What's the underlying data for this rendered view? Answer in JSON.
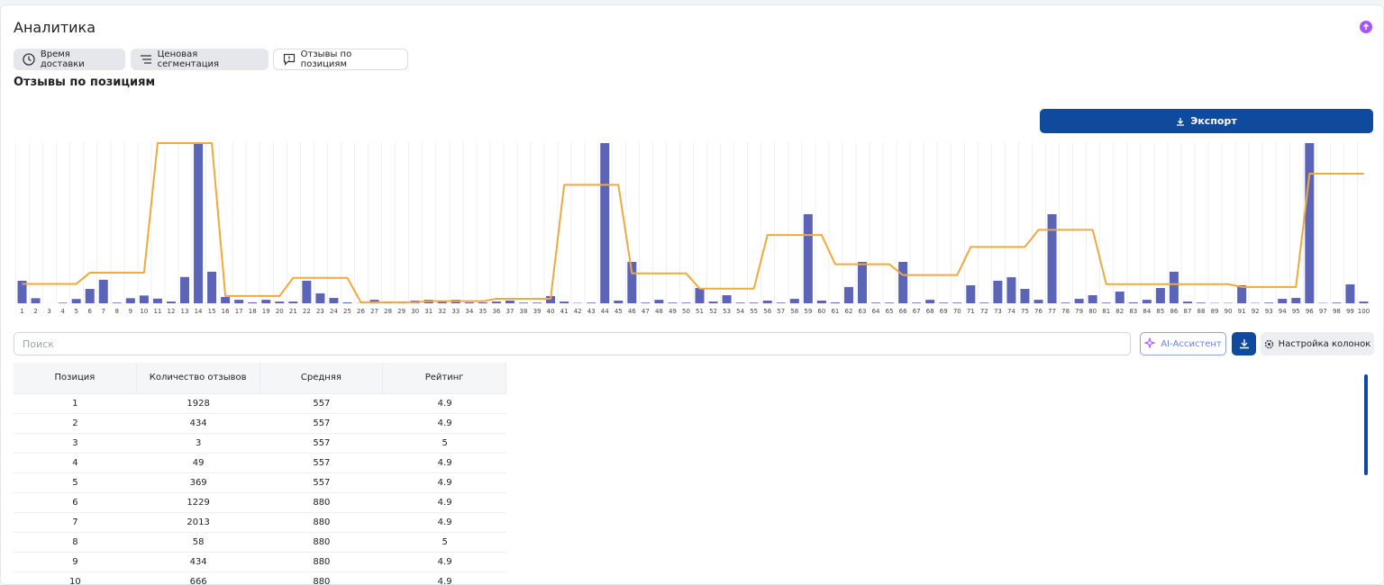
{
  "header": {
    "title": "Аналитика"
  },
  "tabs": [
    "Время доставки",
    "Ценовая сегментация",
    "Отзывы по позициям"
  ],
  "section_title": "Отзывы по позициям",
  "export_button": "Экспорт",
  "chart_data": {
    "type": "bar",
    "categories": [
      "1",
      "2",
      "3",
      "4",
      "5",
      "6",
      "7",
      "8",
      "9",
      "10",
      "11",
      "12",
      "13",
      "14",
      "15",
      "16",
      "17",
      "18",
      "19",
      "20",
      "21",
      "22",
      "23",
      "24",
      "25",
      "26",
      "27",
      "28",
      "29",
      "30",
      "31",
      "32",
      "33",
      "34",
      "35",
      "36",
      "37",
      "38",
      "39",
      "40",
      "41",
      "42",
      "43",
      "44",
      "45",
      "46",
      "47",
      "48",
      "49",
      "50",
      "51",
      "52",
      "53",
      "54",
      "55",
      "56",
      "57",
      "58",
      "59",
      "60",
      "61",
      "62",
      "63",
      "64",
      "65",
      "66",
      "67",
      "68",
      "69",
      "70",
      "71",
      "72",
      "73",
      "74",
      "75",
      "76",
      "77",
      "78",
      "79",
      "80",
      "81",
      "82",
      "83",
      "84",
      "85",
      "86",
      "87",
      "88",
      "89",
      "90",
      "91",
      "92",
      "93",
      "94",
      "95",
      "96",
      "97",
      "98",
      "99",
      "100"
    ],
    "series": [
      {
        "type": "bar",
        "color": "#5c64b8",
        "values": [
          1928,
          434,
          3,
          49,
          369,
          1229,
          2013,
          58,
          434,
          666,
          400,
          150,
          2250,
          13700,
          2700,
          540,
          300,
          80,
          300,
          150,
          150,
          1930,
          850,
          460,
          80,
          20,
          300,
          60,
          60,
          230,
          300,
          150,
          300,
          80,
          80,
          150,
          230,
          60,
          60,
          620,
          150,
          30,
          60,
          13700,
          230,
          3540,
          60,
          300,
          60,
          60,
          1310,
          150,
          690,
          60,
          60,
          230,
          60,
          380,
          7620,
          230,
          80,
          1390,
          3540,
          60,
          60,
          3540,
          60,
          300,
          60,
          60,
          1540,
          60,
          1930,
          2230,
          1230,
          300,
          7620,
          60,
          380,
          690,
          60,
          1000,
          80,
          300,
          1310,
          2700,
          150,
          60,
          30,
          30,
          1540,
          30,
          60,
          380,
          460,
          13700,
          30,
          60,
          1620,
          150
        ]
      },
      {
        "type": "line",
        "axis": "y2",
        "color": "#f0a93b",
        "values": [
          557,
          557,
          557,
          557,
          557,
          880,
          880,
          880,
          880,
          880,
          4600,
          4600,
          4600,
          4600,
          4600,
          210,
          210,
          210,
          210,
          210,
          730,
          730,
          730,
          730,
          730,
          30,
          30,
          30,
          30,
          30,
          60,
          60,
          60,
          60,
          60,
          130,
          130,
          130,
          130,
          130,
          3400,
          3400,
          3400,
          3400,
          3400,
          860,
          860,
          860,
          860,
          860,
          420,
          420,
          420,
          420,
          420,
          1960,
          1960,
          1960,
          1960,
          1960,
          1120,
          1120,
          1120,
          1120,
          1120,
          810,
          810,
          810,
          810,
          810,
          1620,
          1620,
          1620,
          1620,
          1620,
          2110,
          2110,
          2110,
          2110,
          2110,
          550,
          550,
          550,
          550,
          550,
          550,
          550,
          550,
          550,
          550,
          470,
          470,
          470,
          470,
          470,
          3720,
          3720,
          3720,
          3720,
          3720
        ]
      }
    ]
  },
  "search_placeholder": "Поиск",
  "ai_button": "AI-Ассистент",
  "columns_button": "Настройка колонок",
  "table": {
    "columns": [
      "Позиция",
      "Количество отзывов",
      "Средняя",
      "Рейтинг"
    ],
    "rows": [
      [
        1,
        1928,
        557,
        4.9
      ],
      [
        2,
        434,
        557,
        4.9
      ],
      [
        3,
        3,
        557,
        5
      ],
      [
        4,
        49,
        557,
        4.9
      ],
      [
        5,
        369,
        557,
        4.9
      ],
      [
        6,
        1229,
        880,
        4.9
      ],
      [
        7,
        2013,
        880,
        4.9
      ],
      [
        8,
        58,
        880,
        5
      ],
      [
        9,
        434,
        880,
        4.9
      ],
      [
        10,
        666,
        880,
        4.9
      ]
    ]
  }
}
